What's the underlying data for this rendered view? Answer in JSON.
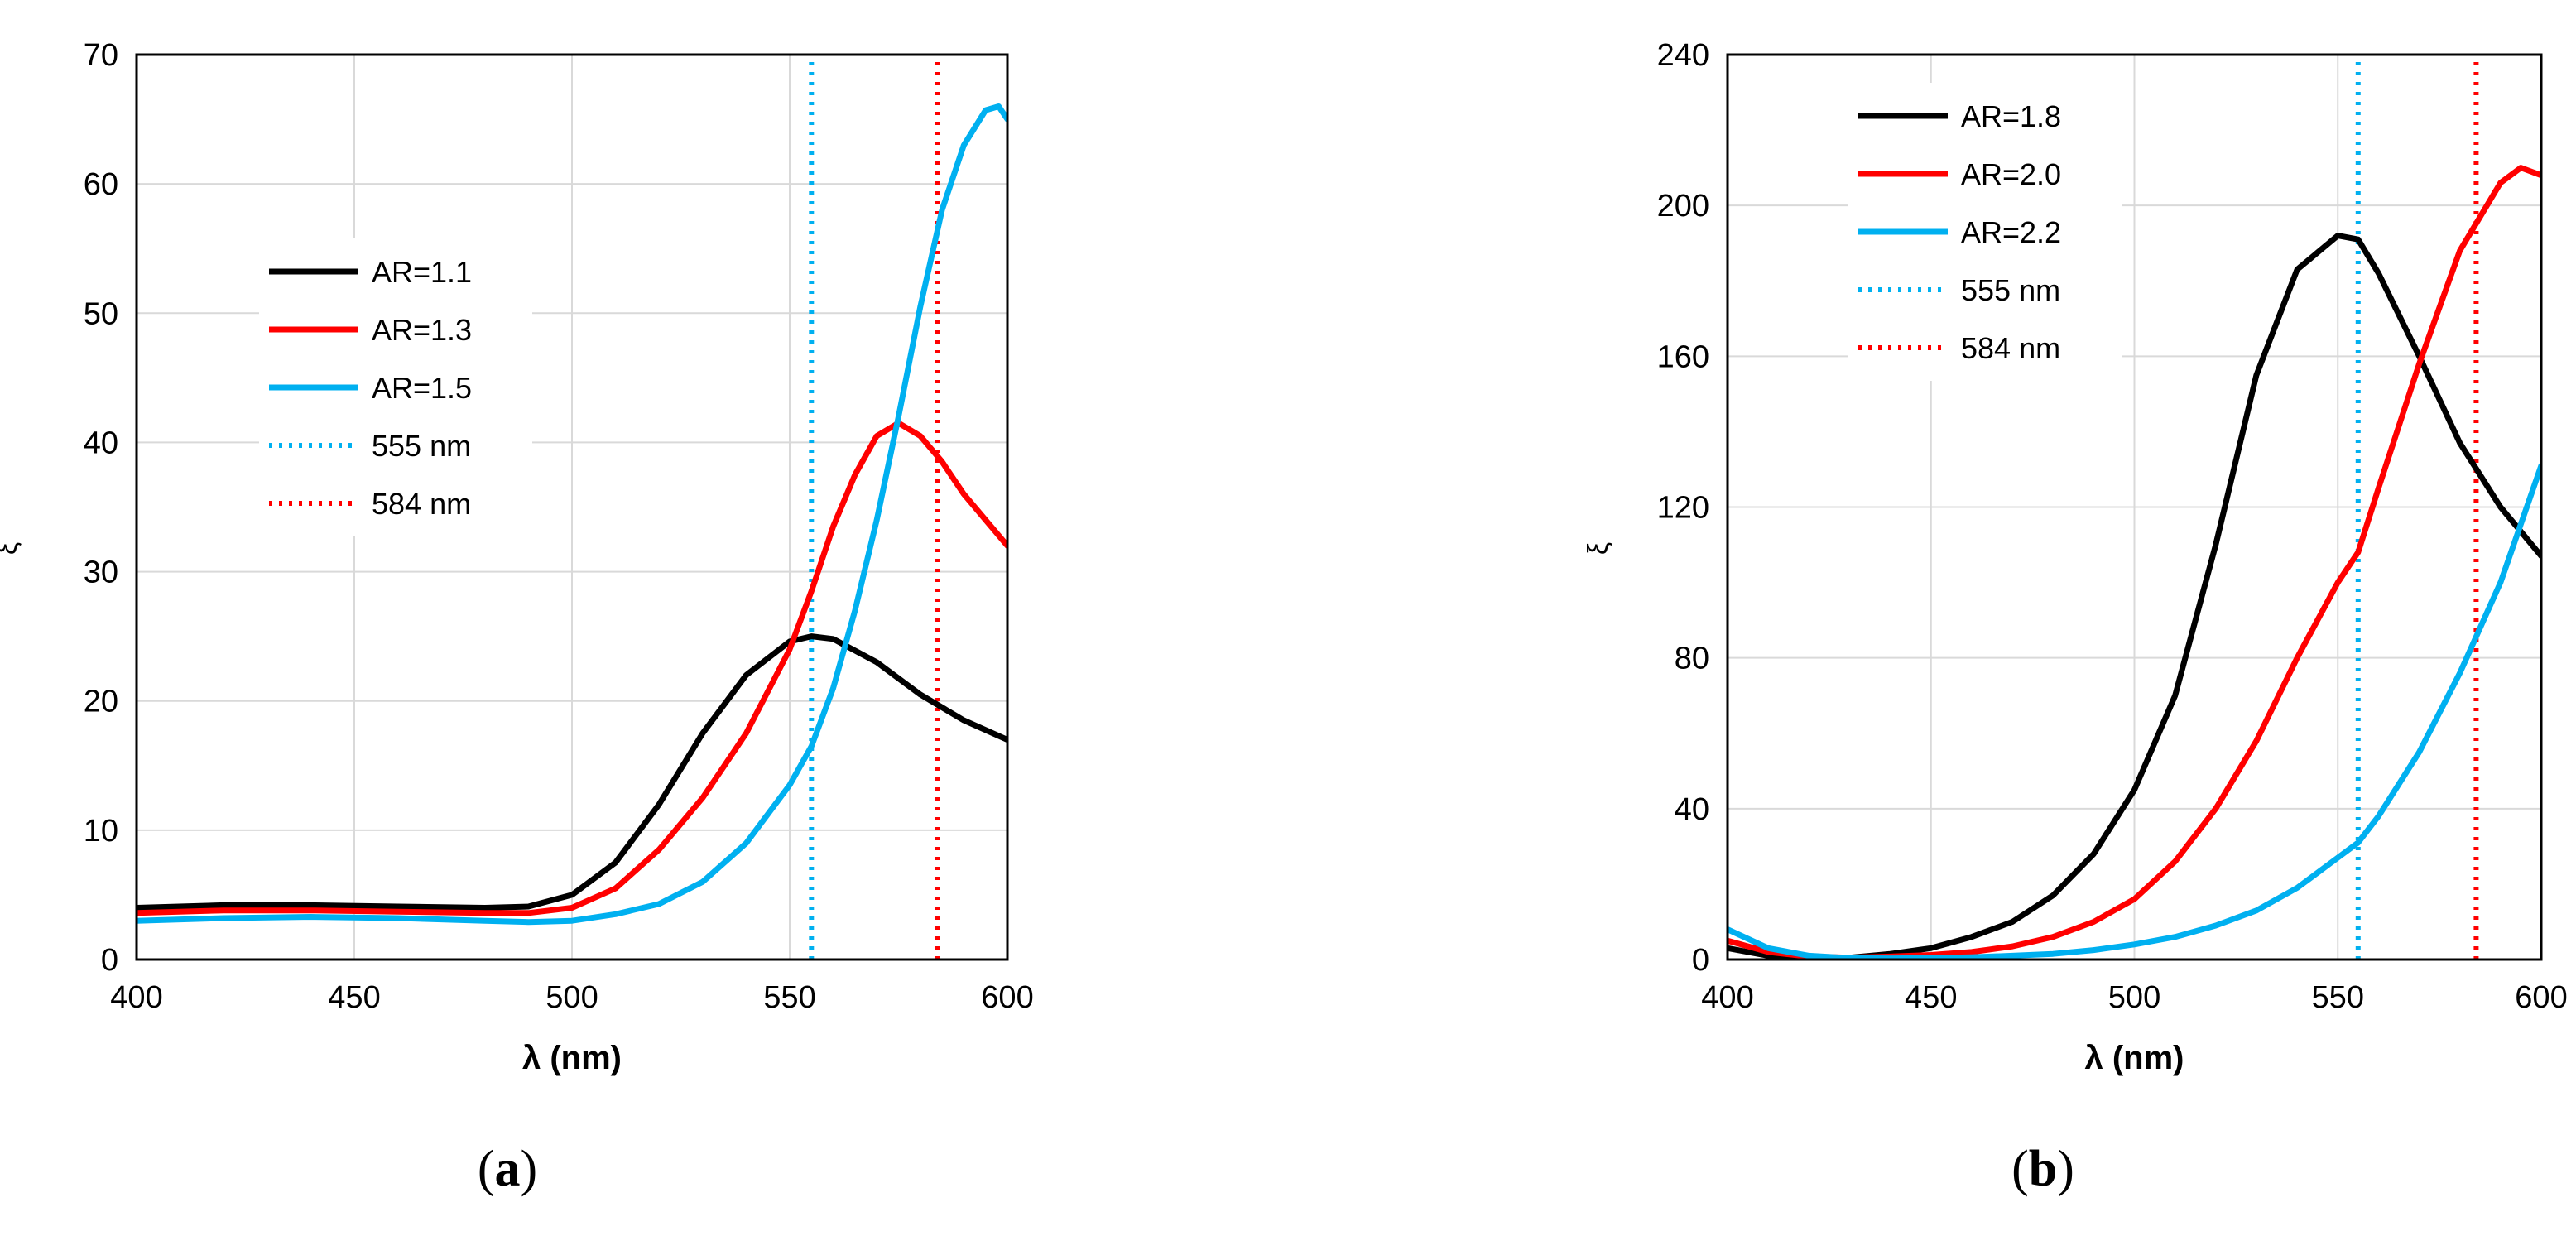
{
  "chart_data": [
    {
      "type": "line",
      "panel_label": "a",
      "xlabel": "λ (nm)",
      "ylabel": "ξ",
      "xlim": [
        400,
        600
      ],
      "ylim": [
        0,
        70
      ],
      "xticks": [
        400,
        450,
        500,
        550,
        600
      ],
      "yticks": [
        0,
        10,
        20,
        30,
        40,
        50,
        60,
        70
      ],
      "grid": true,
      "legend_position": "center-left",
      "series": [
        {
          "name": "AR=1.1",
          "color": "#000000",
          "style": "solid",
          "x": [
            400,
            420,
            440,
            460,
            480,
            490,
            500,
            510,
            520,
            530,
            540,
            550,
            555,
            560,
            570,
            580,
            590,
            600
          ],
          "y": [
            4.0,
            4.2,
            4.2,
            4.1,
            4.0,
            4.1,
            5.0,
            7.5,
            12.0,
            17.5,
            22.0,
            24.6,
            25.0,
            24.8,
            23.0,
            20.5,
            18.5,
            17.0
          ]
        },
        {
          "name": "AR=1.3",
          "color": "#ff0000",
          "style": "solid",
          "x": [
            400,
            420,
            440,
            460,
            480,
            490,
            500,
            510,
            520,
            530,
            540,
            550,
            555,
            560,
            565,
            570,
            575,
            580,
            585,
            590,
            595,
            600
          ],
          "y": [
            3.6,
            3.8,
            3.8,
            3.7,
            3.6,
            3.6,
            4.0,
            5.5,
            8.5,
            12.5,
            17.5,
            24.0,
            28.5,
            33.5,
            37.5,
            40.5,
            41.5,
            40.5,
            38.5,
            36.0,
            34.0,
            32.0
          ]
        },
        {
          "name": "AR=1.5",
          "color": "#00b0f0",
          "style": "solid",
          "x": [
            400,
            420,
            440,
            460,
            480,
            490,
            500,
            510,
            520,
            530,
            540,
            550,
            555,
            560,
            565,
            570,
            575,
            580,
            585,
            590,
            595,
            598,
            600
          ],
          "y": [
            3.0,
            3.2,
            3.3,
            3.2,
            3.0,
            2.9,
            3.0,
            3.5,
            4.3,
            6.0,
            9.0,
            13.5,
            16.5,
            21.0,
            27.0,
            34.0,
            42.0,
            50.5,
            58.0,
            63.0,
            65.7,
            66.0,
            65.0
          ]
        },
        {
          "name": "555 nm",
          "color": "#00b0f0",
          "style": "dotted",
          "x": [
            555,
            555
          ],
          "y": [
            0,
            70
          ]
        },
        {
          "name": "584 nm",
          "color": "#ff0000",
          "style": "dotted",
          "x": [
            584,
            584
          ],
          "y": [
            0,
            70
          ]
        }
      ]
    },
    {
      "type": "line",
      "panel_label": "b",
      "xlabel": "λ (nm)",
      "ylabel": "ξ",
      "xlim": [
        400,
        600
      ],
      "ylim": [
        0,
        240
      ],
      "xticks": [
        400,
        450,
        500,
        550,
        600
      ],
      "yticks": [
        0,
        40,
        80,
        120,
        160,
        200,
        240
      ],
      "grid": true,
      "legend_position": "top-left",
      "series": [
        {
          "name": "AR=1.8",
          "color": "#000000",
          "style": "solid",
          "x": [
            400,
            410,
            420,
            430,
            440,
            450,
            460,
            470,
            480,
            490,
            500,
            510,
            520,
            530,
            540,
            550,
            555,
            560,
            570,
            580,
            590,
            600
          ],
          "y": [
            3.0,
            1.0,
            0.3,
            0.5,
            1.5,
            3.0,
            6.0,
            10.0,
            17.0,
            28.0,
            45.0,
            70.0,
            110.0,
            155.0,
            183.0,
            192.0,
            191.0,
            182.0,
            160.0,
            137.0,
            120.0,
            107.0
          ]
        },
        {
          "name": "AR=2.0",
          "color": "#ff0000",
          "style": "solid",
          "x": [
            400,
            410,
            420,
            430,
            440,
            450,
            460,
            470,
            480,
            490,
            500,
            510,
            520,
            530,
            540,
            550,
            555,
            560,
            570,
            580,
            590,
            595,
            600
          ],
          "y": [
            5.0,
            2.0,
            0.8,
            0.5,
            0.8,
            1.2,
            2.0,
            3.5,
            6.0,
            10.0,
            16.0,
            26.0,
            40.0,
            58.0,
            80.0,
            100.0,
            108.0,
            125.0,
            158.0,
            188.0,
            206.0,
            210.0,
            208.0
          ]
        },
        {
          "name": "AR=2.2",
          "color": "#00b0f0",
          "style": "solid",
          "x": [
            400,
            410,
            420,
            430,
            440,
            450,
            460,
            470,
            480,
            490,
            500,
            510,
            520,
            530,
            540,
            550,
            555,
            560,
            570,
            580,
            590,
            600
          ],
          "y": [
            8.0,
            3.0,
            1.0,
            0.4,
            0.3,
            0.4,
            0.6,
            1.0,
            1.5,
            2.5,
            4.0,
            6.0,
            9.0,
            13.0,
            19.0,
            27.0,
            31.0,
            38.0,
            55.0,
            76.0,
            100.0,
            131.0
          ]
        },
        {
          "name": "555 nm",
          "color": "#00b0f0",
          "style": "dotted",
          "x": [
            555,
            555
          ],
          "y": [
            0,
            240
          ]
        },
        {
          "name": "584 nm",
          "color": "#ff0000",
          "style": "dotted",
          "x": [
            584,
            584
          ],
          "y": [
            0,
            240
          ]
        }
      ]
    }
  ]
}
